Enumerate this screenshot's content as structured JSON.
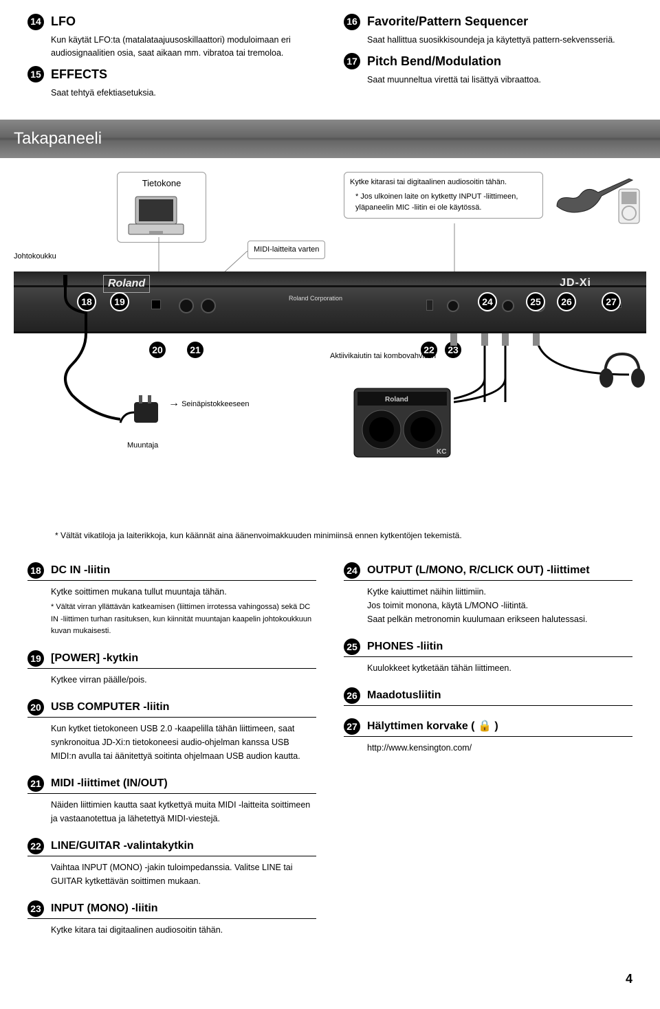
{
  "top": {
    "s14": {
      "num": "14",
      "title": "LFO",
      "body": "Kun käytät LFO:ta (matalataajuusoskillaattori) moduloimaan eri audiosignaalitien osia, saat aikaan mm. vibratoa tai tremoloa."
    },
    "s15": {
      "num": "15",
      "title": "EFFECTS",
      "body": "Saat tehtyä efektiasetuksia."
    },
    "s16": {
      "num": "16",
      "title": "Favorite/Pattern Sequencer",
      "body": "Saat hallittua suosikkisoundeja ja käytettyä pattern-sekvensseriä."
    },
    "s17": {
      "num": "17",
      "title": "Pitch Bend/Modulation",
      "body": "Saat muunneltua virettä tai lisättyä vibraattoa."
    }
  },
  "panel_header": "Takapaneeli",
  "diagram": {
    "tietokone": "Tietokone",
    "midi": "MIDI-laitteita varten",
    "johtokoukku": "Johtokoukku",
    "kytke_kitara": "Kytke kitarasi tai digitaalinen audiosoitin tähän.",
    "kytke_note": "* Jos ulkoinen laite on kytketty INPUT -liittimeen, yläpaneelin MIC -liitin ei ole käytössä.",
    "aktiivi": "Aktiivikaiutin tai kombovahvistin",
    "seina": "Seinäpistokkeeseen",
    "muuntaja": "Muuntaja",
    "brand_roland": "Roland",
    "brand_jdxi": "JD-Xi",
    "roland_corp": "Roland Corporation",
    "kc": "KC",
    "nums": {
      "n18": "18",
      "n19": "19",
      "n20": "20",
      "n21": "21",
      "n22": "22",
      "n23": "23",
      "n24": "24",
      "n25": "25",
      "n26": "26",
      "n27": "27"
    }
  },
  "footnote": "* Vältät vikatiloja ja laiterikkoja, kun käännät aina äänenvoimakkuuden minimiinsä ennen kytkentöjen tekemistä.",
  "lower_left": [
    {
      "num": "18",
      "title": "DC IN -liitin",
      "body": "Kytke soittimen mukana tullut muuntaja tähän.",
      "small": "* Vältät virran yllättävän katkeamisen (liittimen irrotessa vahingossa) sekä DC IN -liittimen turhan rasituksen, kun kiinnität muuntajan kaapelin johtokoukkuun kuvan mukaisesti."
    },
    {
      "num": "19",
      "title": "[POWER] -kytkin",
      "body": "Kytkee virran päälle/pois."
    },
    {
      "num": "20",
      "title": "USB COMPUTER -liitin",
      "body": "Kun kytket tietokoneen USB 2.0 -kaapelilla tähän liittimeen, saat synkronoitua JD-Xi:n tietokoneesi audio-ohjelman kanssa USB MIDI:n avulla tai äänitettyä soitinta ohjelmaan USB audion kautta."
    },
    {
      "num": "21",
      "title": "MIDI -liittimet (IN/OUT)",
      "body": "Näiden liittimien kautta saat kytkettyä muita MIDI -laitteita soittimeen ja vastaanotettua ja lähetettyä MIDI-viestejä."
    },
    {
      "num": "22",
      "title": "LINE/GUITAR -valintakytkin",
      "body": "Vaihtaa INPUT (MONO) -jakin tuloimpedanssia. Valitse LINE tai GUITAR kytkettävän soittimen mukaan."
    },
    {
      "num": "23",
      "title": "INPUT (MONO) -liitin",
      "body": "Kytke kitara tai digitaalinen audiosoitin tähän."
    }
  ],
  "lower_right": [
    {
      "num": "24",
      "title": "OUTPUT (L/MONO, R/CLICK OUT) -liittimet",
      "body": "Kytke kaiuttimet näihin liittimiin.\nJos toimit monona, käytä L/MONO -liitintä.\nSaat pelkän metronomin kuulumaan erikseen halutessasi."
    },
    {
      "num": "25",
      "title": "PHONES -liitin",
      "body": "Kuulokkeet kytketään tähän liittimeen."
    },
    {
      "num": "26",
      "title": "Maadotusliitin",
      "body": ""
    },
    {
      "num": "27",
      "title": "Hälyttimen korvake ( 🔒 )",
      "body": "http://www.kensington.com/"
    }
  ],
  "page": "4"
}
